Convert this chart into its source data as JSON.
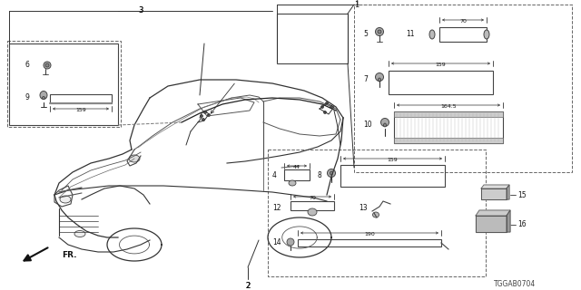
{
  "bg_color": "#ffffff",
  "fig_width": 6.4,
  "fig_height": 3.2,
  "diagram_code": "TGGAB0704",
  "line_color": "#333333",
  "box_color": "#555555"
}
